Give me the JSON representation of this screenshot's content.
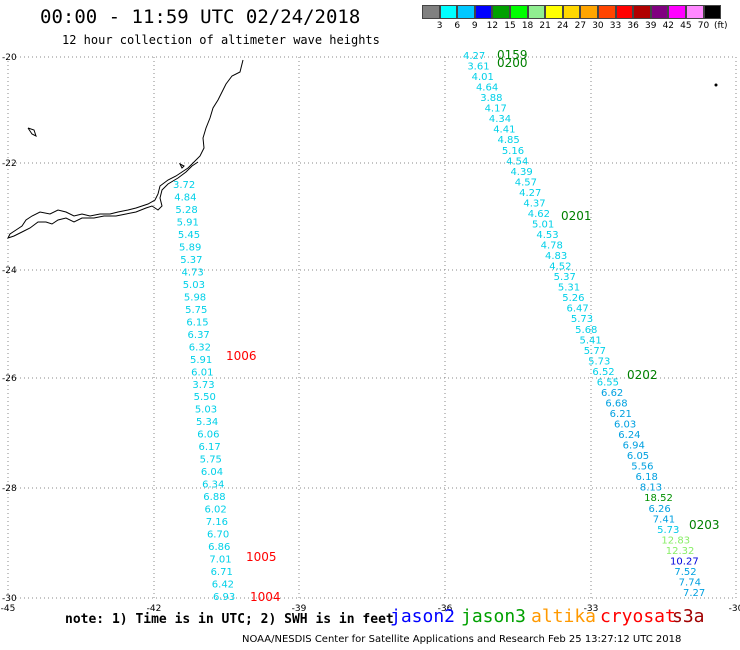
{
  "header": {
    "title": "00:00 - 11:59 UTC 02/24/2018",
    "subtitle": "12 hour collection of altimeter wave heights"
  },
  "colorbar": {
    "labels": [
      "3",
      "6",
      "9",
      "12",
      "15",
      "18",
      "21",
      "24",
      "27",
      "30",
      "33",
      "36",
      "39",
      "42",
      "45",
      "70"
    ],
    "unit": "(ft)",
    "colors": [
      "#808080",
      "#00ffff",
      "#00c8ff",
      "#0000ff",
      "#00a000",
      "#00ff00",
      "#90ee90",
      "#ffff00",
      "#ffd700",
      "#ffa500",
      "#ff4500",
      "#ff0000",
      "#b00000",
      "#800080",
      "#ff00ff",
      "#ff88ff",
      "#000000"
    ]
  },
  "axes": {
    "lat_labels": [
      "-20",
      "-22",
      "-24",
      "-26",
      "-28",
      "-30"
    ],
    "lon_labels": [
      "-45",
      "-42",
      "-39",
      "-36",
      "-33",
      "-30"
    ]
  },
  "track1": {
    "color": "#00d0e8",
    "values": [
      "3.72",
      "4.84",
      "5.28",
      "5.91",
      "5.45",
      "5.89",
      "5.37",
      "4.73",
      "5.03",
      "5.98",
      "5.75",
      "6.15",
      "6.37",
      "6.32",
      "5.91",
      "6.01",
      "3.73",
      "5.50",
      "5.03",
      "5.34",
      "6.06",
      "6.17",
      "5.75",
      "6.04",
      "6.34",
      "6.88",
      "6.02",
      "7.16",
      "6.70",
      "6.86",
      "7.01",
      "6.71",
      "6.42",
      "6.93"
    ],
    "times": [
      {
        "text": "1006",
        "color": "#ff0000"
      },
      {
        "text": "1005",
        "color": "#ff0000"
      },
      {
        "text": "1004",
        "color": "#ff0000"
      }
    ]
  },
  "track2": {
    "values": [
      {
        "v": "4.27",
        "c": "#00d0e8"
      },
      {
        "v": "3.61",
        "c": "#00d0e8"
      },
      {
        "v": "4.01",
        "c": "#00d0e8"
      },
      {
        "v": "4.64",
        "c": "#00d0e8"
      },
      {
        "v": "3.88",
        "c": "#00d0e8"
      },
      {
        "v": "4.17",
        "c": "#00d0e8"
      },
      {
        "v": "4.34",
        "c": "#00d0e8"
      },
      {
        "v": "4.41",
        "c": "#00d0e8"
      },
      {
        "v": "4.85",
        "c": "#00d0e8"
      },
      {
        "v": "5.16",
        "c": "#00d0e8"
      },
      {
        "v": "4.54",
        "c": "#00d0e8"
      },
      {
        "v": "4.39",
        "c": "#00d0e8"
      },
      {
        "v": "4.57",
        "c": "#00d0e8"
      },
      {
        "v": "4.27",
        "c": "#00d0e8"
      },
      {
        "v": "4.37",
        "c": "#00d0e8"
      },
      {
        "v": "4.62",
        "c": "#00d0e8"
      },
      {
        "v": "5.01",
        "c": "#00d0e8"
      },
      {
        "v": "4.53",
        "c": "#00d0e8"
      },
      {
        "v": "4.78",
        "c": "#00d0e8"
      },
      {
        "v": "4.83",
        "c": "#00d0e8"
      },
      {
        "v": "4.52",
        "c": "#00d0e8"
      },
      {
        "v": "5.37",
        "c": "#00d0e8"
      },
      {
        "v": "5.31",
        "c": "#00d0e8"
      },
      {
        "v": "5.26",
        "c": "#00d0e8"
      },
      {
        "v": "6.47",
        "c": "#00d0e8"
      },
      {
        "v": "5.73",
        "c": "#00d0e8"
      },
      {
        "v": "5.68",
        "c": "#00d0e8"
      },
      {
        "v": "5.41",
        "c": "#00d0e8"
      },
      {
        "v": "5.77",
        "c": "#00d0e8"
      },
      {
        "v": "5.73",
        "c": "#00d0e8"
      },
      {
        "v": "6.52",
        "c": "#00d0e8"
      },
      {
        "v": "6.55",
        "c": "#00d0e8"
      },
      {
        "v": "6.62",
        "c": "#00a0e0"
      },
      {
        "v": "6.68",
        "c": "#00a0e0"
      },
      {
        "v": "6.21",
        "c": "#00a0e0"
      },
      {
        "v": "6.03",
        "c": "#00a0e0"
      },
      {
        "v": "6.24",
        "c": "#00a0e0"
      },
      {
        "v": "6.94",
        "c": "#00a0e0"
      },
      {
        "v": "6.05",
        "c": "#00a0e0"
      },
      {
        "v": "5.56",
        "c": "#00a0e0"
      },
      {
        "v": "6.18",
        "c": "#00a0e0"
      },
      {
        "v": "8.13",
        "c": "#00a0e0"
      },
      {
        "v": "18.52",
        "c": "#009000"
      },
      {
        "v": "6.26",
        "c": "#00a0e0"
      },
      {
        "v": "7.41",
        "c": "#00a0e0"
      },
      {
        "v": "5.73",
        "c": "#00c8e8"
      },
      {
        "v": "12.83",
        "c": "#88ee66"
      },
      {
        "v": "12.32",
        "c": "#88ee66"
      },
      {
        "v": "10.27",
        "c": "#0000dd"
      },
      {
        "v": "7.52",
        "c": "#00a0e0"
      },
      {
        "v": "7.74",
        "c": "#00a0e0"
      },
      {
        "v": "7.27",
        "c": "#00a0e0"
      }
    ],
    "times": [
      {
        "text": "0159",
        "color": "#008000"
      },
      {
        "text": "0200",
        "color": "#008000"
      },
      {
        "text": "0201",
        "color": "#008000"
      },
      {
        "text": "0202",
        "color": "#008000"
      },
      {
        "text": "0203",
        "color": "#008000"
      }
    ]
  },
  "note": "note: 1) Time is in UTC; 2) SWH is in feet",
  "legend": [
    {
      "label": "jason2",
      "color": "#0000ff"
    },
    {
      "label": "jason3",
      "color": "#00a000"
    },
    {
      "label": "altika",
      "color": "#ff9900"
    },
    {
      "label": "cryosat",
      "color": "#ff0000"
    },
    {
      "label": "s3a",
      "color": "#a00000"
    }
  ],
  "footer": "NOAA/NESDIS Center for Satellite Applications and Research   Feb 25 13:27:12 UTC 2018"
}
